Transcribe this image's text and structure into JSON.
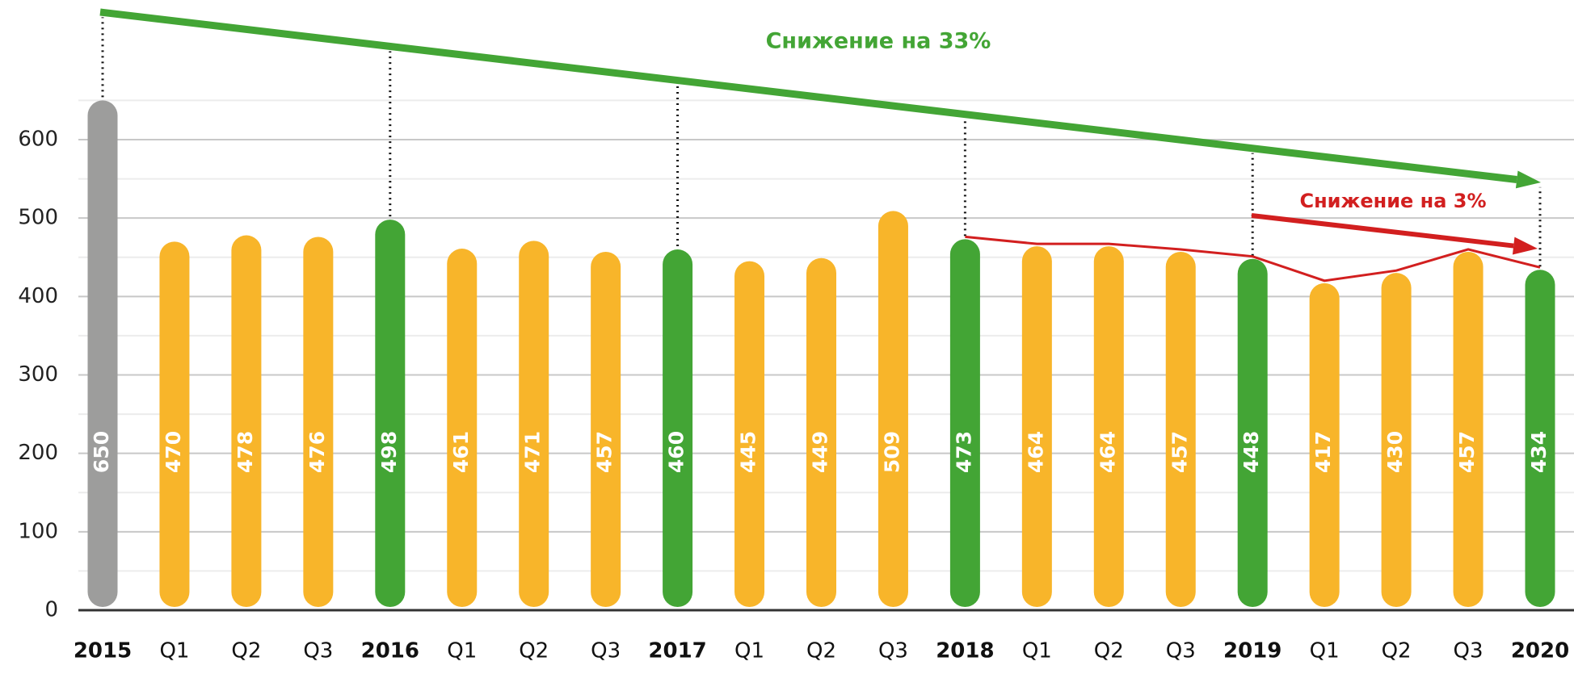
{
  "chart_data": {
    "type": "bar",
    "categories": [
      "2015",
      "Q1",
      "Q2",
      "Q3",
      "2016",
      "Q1",
      "Q2",
      "Q3",
      "2017",
      "Q1",
      "Q2",
      "Q3",
      "2018",
      "Q1",
      "Q2",
      "Q3",
      "2019",
      "Q1",
      "Q2",
      "Q3",
      "2020"
    ],
    "values": [
      650,
      470,
      478,
      476,
      498,
      461,
      471,
      457,
      460,
      445,
      449,
      509,
      473,
      464,
      464,
      457,
      448,
      417,
      430,
      457,
      434
    ],
    "colors": [
      "#9d9d9c",
      "#f8b52a",
      "#f8b52a",
      "#f8b52a",
      "#43a535",
      "#f8b52a",
      "#f8b52a",
      "#f8b52a",
      "#43a535",
      "#f8b52a",
      "#f8b52a",
      "#f8b52a",
      "#43a535",
      "#f8b52a",
      "#f8b52a",
      "#f8b52a",
      "#43a535",
      "#f8b52a",
      "#f8b52a",
      "#f8b52a",
      "#43a535"
    ],
    "ylim": [
      0,
      600
    ],
    "yticks": [
      0,
      100,
      200,
      300,
      400,
      500,
      600
    ],
    "minor_yticks": [
      50,
      150,
      250,
      350,
      450,
      550,
      650
    ],
    "grid": true,
    "annotations": [
      "Снижение на 33%",
      "Снижение на 3%"
    ]
  }
}
